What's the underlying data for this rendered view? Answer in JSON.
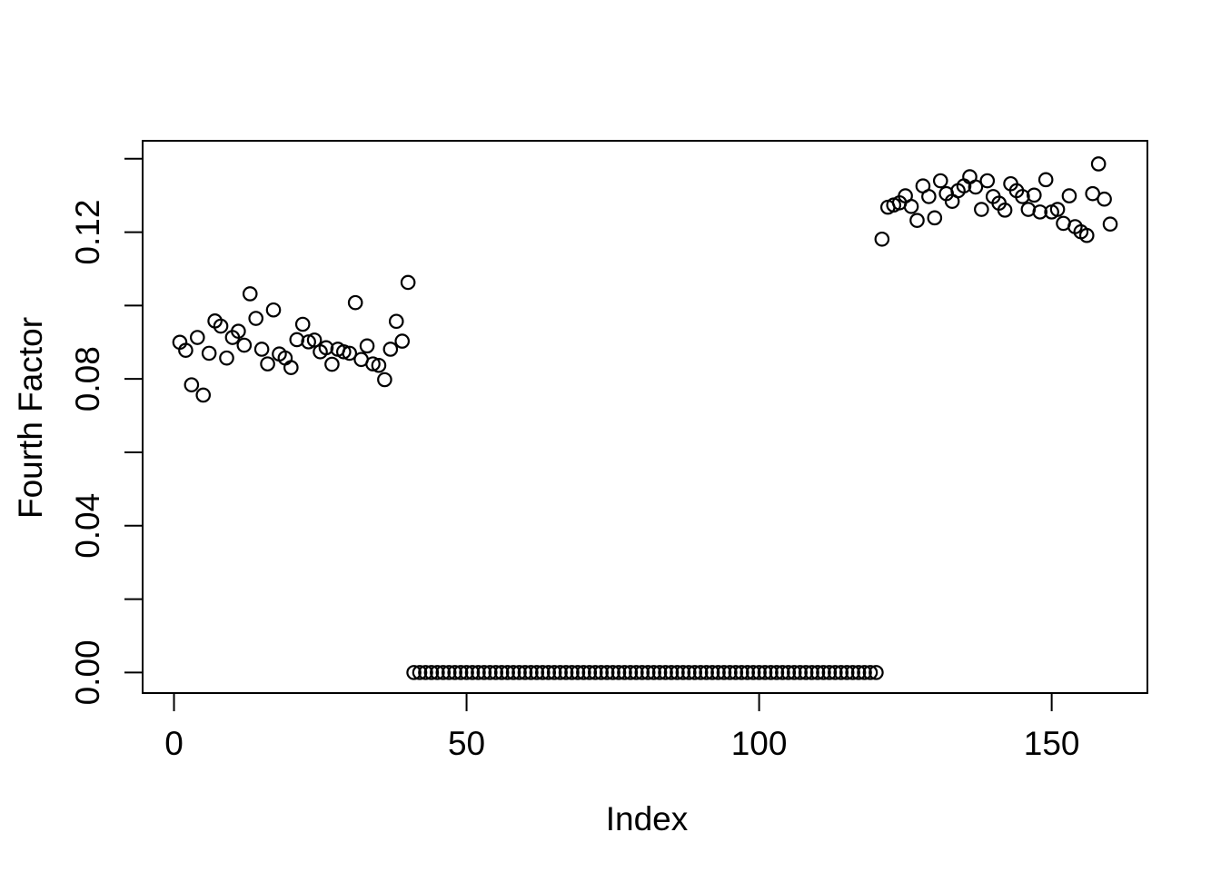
{
  "chart_data": {
    "type": "scatter",
    "title": "",
    "xlabel": "Index",
    "ylabel": "Fourth Factor",
    "marker": "open-circle",
    "point_color": "#000000",
    "background_color": "#ffffff",
    "grid": false,
    "legend": null,
    "xlim": [
      -5.36,
      166.36
    ],
    "ylim": [
      -0.0056,
      0.1449
    ],
    "x_tick_values": [
      0,
      50,
      100,
      150
    ],
    "x_tick_labels": [
      "0",
      "50",
      "100",
      "150"
    ],
    "y_tick_values_all": [
      0.0,
      0.02,
      0.04,
      0.06,
      0.08,
      0.1,
      0.12,
      0.14
    ],
    "y_tick_labeled_values": [
      0.0,
      0.04,
      0.08,
      0.12
    ],
    "y_tick_labels": [
      "0.00",
      "0.04",
      "0.08",
      "0.12"
    ],
    "x_is_index": true,
    "x_start": 1,
    "n_points": 160,
    "values": [
      0.09,
      0.0878,
      0.0784,
      0.0913,
      0.0756,
      0.087,
      0.0958,
      0.0944,
      0.0857,
      0.0913,
      0.093,
      0.0892,
      0.1032,
      0.0965,
      0.0881,
      0.0841,
      0.0988,
      0.0868,
      0.0857,
      0.0831,
      0.0907,
      0.0949,
      0.0901,
      0.0906,
      0.0874,
      0.0885,
      0.084,
      0.0881,
      0.0874,
      0.087,
      0.1008,
      0.0853,
      0.089,
      0.0841,
      0.0837,
      0.0798,
      0.0881,
      0.0957,
      0.0903,
      0.1063,
      0,
      0,
      0,
      0,
      0,
      0,
      0,
      0,
      0,
      0,
      0,
      0,
      0,
      0,
      0,
      0,
      0,
      0,
      0,
      0,
      0,
      0,
      0,
      0,
      0,
      0,
      0,
      0,
      0,
      0,
      0,
      0,
      0,
      0,
      0,
      0,
      0,
      0,
      0,
      0,
      0,
      0,
      0,
      0,
      0,
      0,
      0,
      0,
      0,
      0,
      0,
      0,
      0,
      0,
      0,
      0,
      0,
      0,
      0,
      0,
      0,
      0,
      0,
      0,
      0,
      0,
      0,
      0,
      0,
      0,
      0,
      0,
      0,
      0,
      0,
      0,
      0,
      0,
      0,
      0,
      0.1181,
      0.1268,
      0.1274,
      0.128,
      0.1299,
      0.127,
      0.1232,
      0.1326,
      0.1297,
      0.1239,
      0.134,
      0.1305,
      0.1284,
      0.1313,
      0.1326,
      0.1351,
      0.1323,
      0.1262,
      0.134,
      0.1297,
      0.1279,
      0.126,
      0.1332,
      0.1313,
      0.1297,
      0.1262,
      0.1301,
      0.1255,
      0.1343,
      0.1255,
      0.1262,
      0.1224,
      0.1299,
      0.1215,
      0.1201,
      0.1191,
      0.1305,
      0.1386,
      0.129,
      0.1222
    ]
  }
}
